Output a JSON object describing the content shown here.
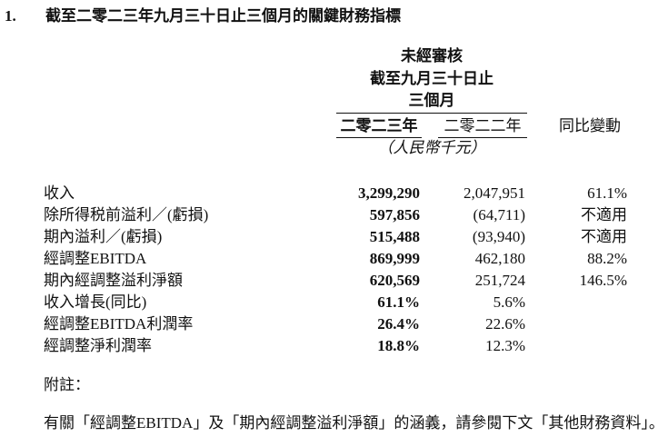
{
  "header": {
    "number": "1.",
    "title": "截至二零二三年九月三十日止三個月的關鍵財務指標"
  },
  "table": {
    "header_lines": [
      "未經審核",
      "截至九月三十日止",
      "三個月"
    ],
    "columns": [
      "二零二三年",
      "二零二二年",
      "同比變動"
    ],
    "unit": "（人民幣千元）",
    "rows": [
      [
        "收入",
        "3,299,290",
        "2,047,951",
        "61.1%"
      ],
      [
        "除所得税前溢利／(虧損)",
        "597,856",
        "(64,711)",
        "不適用"
      ],
      [
        "期內溢利／(虧損)",
        "515,488",
        "(93,940)",
        "不適用"
      ],
      [
        "經調整EBITDA",
        "869,999",
        "462,180",
        "88.2%"
      ],
      [
        "期內經調整溢利淨額",
        "620,569",
        "251,724",
        "146.5%"
      ],
      [
        "收入增長(同比)",
        "61.1%",
        "5.6%"
      ],
      [
        "經調整EBITDA利潤率",
        "26.4%",
        "22.6%"
      ],
      [
        "經調整淨利潤率",
        "18.8%",
        "12.3%"
      ]
    ]
  },
  "notes": {
    "label": "附註：",
    "text": "有關「經調整EBITDA」及「期內經調整溢利淨額」的涵義，請參閱下文「其他財務資料」。"
  }
}
